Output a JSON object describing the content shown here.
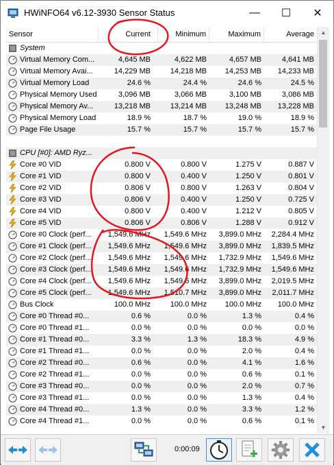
{
  "window": {
    "title": "HWiNFO64 v6.12-3930 Sensor Status"
  },
  "title_buttons": {
    "minimize": "—",
    "maximize": "☐",
    "close": "✕"
  },
  "columns": {
    "sensor": "Sensor",
    "current": "Current",
    "minimum": "Minimum",
    "maximum": "Maximum",
    "average": "Average"
  },
  "scroll": {
    "up": "▲",
    "down": "▼"
  },
  "rows": [
    {
      "type": "group",
      "icon": "system-icon",
      "label": "System"
    },
    {
      "type": "sensor",
      "icon": "gauge-icon",
      "label": "Virtual Memory Com...",
      "current": "4,645 MB",
      "min": "4,622 MB",
      "max": "4,657 MB",
      "avg": "4,641 MB"
    },
    {
      "type": "sensor",
      "icon": "gauge-icon",
      "label": "Virtual Memory Avai...",
      "current": "14,229 MB",
      "min": "14,218 MB",
      "max": "14,253 MB",
      "avg": "14,233 MB"
    },
    {
      "type": "sensor",
      "icon": "gauge-icon",
      "label": "Virtual Memory Load",
      "current": "24.6 %",
      "min": "24.4 %",
      "max": "24.6 %",
      "avg": "24.5 %"
    },
    {
      "type": "sensor",
      "icon": "gauge-icon",
      "label": "Physical Memory Used",
      "current": "3,096 MB",
      "min": "3,066 MB",
      "max": "3,100 MB",
      "avg": "3,086 MB"
    },
    {
      "type": "sensor",
      "icon": "gauge-icon",
      "label": "Physical Memory Av...",
      "current": "13,218 MB",
      "min": "13,214 MB",
      "max": "13,248 MB",
      "avg": "13,228 MB"
    },
    {
      "type": "sensor",
      "icon": "gauge-icon",
      "label": "Physical Memory Load",
      "current": "18.9 %",
      "min": "18.7 %",
      "max": "19.0 %",
      "avg": "18.9 %"
    },
    {
      "type": "sensor",
      "icon": "gauge-icon",
      "label": "Page File Usage",
      "current": "15.7 %",
      "min": "15.7 %",
      "max": "15.7 %",
      "avg": "15.7 %"
    },
    {
      "type": "blank"
    },
    {
      "type": "group",
      "icon": "cpu-icon",
      "label": "CPU [#0]: AMD Ryz..."
    },
    {
      "type": "sensor",
      "icon": "voltage-icon",
      "label": "Core #0 VID",
      "current": "0.800 V",
      "min": "0.800 V",
      "max": "1.275 V",
      "avg": "0.887 V"
    },
    {
      "type": "sensor",
      "icon": "voltage-icon",
      "label": "Core #1 VID",
      "current": "0.800 V",
      "min": "0.400 V",
      "max": "1.250 V",
      "avg": "0.801 V"
    },
    {
      "type": "sensor",
      "icon": "voltage-icon",
      "label": "Core #2 VID",
      "current": "0.806 V",
      "min": "0.800 V",
      "max": "1.263 V",
      "avg": "0.804 V"
    },
    {
      "type": "sensor",
      "icon": "voltage-icon",
      "label": "Core #3 VID",
      "current": "0.806 V",
      "min": "0.400 V",
      "max": "1.250 V",
      "avg": "0.725 V"
    },
    {
      "type": "sensor",
      "icon": "voltage-icon",
      "label": "Core #4 VID",
      "current": "0.800 V",
      "min": "0.400 V",
      "max": "1.212 V",
      "avg": "0.805 V"
    },
    {
      "type": "sensor",
      "icon": "voltage-icon",
      "label": "Core #5 VID",
      "current": "0.806 V",
      "min": "0.806 V",
      "max": "1.288 V",
      "avg": "0.912 V"
    },
    {
      "type": "sensor",
      "icon": "gauge-icon",
      "label": "Core #0 Clock (perf...",
      "current": "1,549.6 MHz",
      "min": "1,549.6 MHz",
      "max": "3,899.0 MHz",
      "avg": "2,284.4 MHz"
    },
    {
      "type": "sensor",
      "icon": "gauge-icon",
      "label": "Core #1 Clock (perf...",
      "current": "1,549.6 MHz",
      "min": "1,549.6 MHz",
      "max": "3,899.0 MHz",
      "avg": "1,839.5 MHz"
    },
    {
      "type": "sensor",
      "icon": "gauge-icon",
      "label": "Core #2 Clock (perf...",
      "current": "1,549.6 MHz",
      "min": "1,549.6 MHz",
      "max": "1,732.9 MHz",
      "avg": "1,549.6 MHz"
    },
    {
      "type": "sensor",
      "icon": "gauge-icon",
      "label": "Core #3 Clock (perf...",
      "current": "1,549.6 MHz",
      "min": "1,549.6 MHz",
      "max": "1,732.9 MHz",
      "avg": "1,549.6 MHz"
    },
    {
      "type": "sensor",
      "icon": "gauge-icon",
      "label": "Core #4 Clock (perf...",
      "current": "1,549.6 MHz",
      "min": "1,549.6 MHz",
      "max": "3,899.0 MHz",
      "avg": "2,019.5 MHz"
    },
    {
      "type": "sensor",
      "icon": "gauge-icon",
      "label": "Core #5 Clock (perf...",
      "current": "1,549.6 MHz",
      "min": "1,510.7 MHz",
      "max": "3,899.0 MHz",
      "avg": "2,011.7 MHz"
    },
    {
      "type": "sensor",
      "icon": "gauge-icon",
      "label": "Bus Clock",
      "current": "100.0 MHz",
      "min": "100.0 MHz",
      "max": "100.0 MHz",
      "avg": "100.0 MHz"
    },
    {
      "type": "sensor",
      "icon": "gauge-icon",
      "label": "Core #0 Thread #0...",
      "current": "0.6 %",
      "min": "0.0 %",
      "max": "1.3 %",
      "avg": "0.4 %"
    },
    {
      "type": "sensor",
      "icon": "gauge-icon",
      "label": "Core #0 Thread #1...",
      "current": "0.0 %",
      "min": "0.0 %",
      "max": "0.0 %",
      "avg": "0.0 %"
    },
    {
      "type": "sensor",
      "icon": "gauge-icon",
      "label": "Core #1 Thread #0...",
      "current": "3.3 %",
      "min": "1.3 %",
      "max": "18.3 %",
      "avg": "4.9 %"
    },
    {
      "type": "sensor",
      "icon": "gauge-icon",
      "label": "Core #1 Thread #1...",
      "current": "0.0 %",
      "min": "0.0 %",
      "max": "2.0 %",
      "avg": "0.4 %"
    },
    {
      "type": "sensor",
      "icon": "gauge-icon",
      "label": "Core #2 Thread #0...",
      "current": "0.6 %",
      "min": "0.0 %",
      "max": "4.1 %",
      "avg": "1.6 %"
    },
    {
      "type": "sensor",
      "icon": "gauge-icon",
      "label": "Core #2 Thread #1...",
      "current": "0.0 %",
      "min": "0.0 %",
      "max": "0.6 %",
      "avg": "0.1 %"
    },
    {
      "type": "sensor",
      "icon": "gauge-icon",
      "label": "Core #3 Thread #0...",
      "current": "0.0 %",
      "min": "0.0 %",
      "max": "2.0 %",
      "avg": "0.7 %"
    },
    {
      "type": "sensor",
      "icon": "gauge-icon",
      "label": "Core #3 Thread #1...",
      "current": "0.0 %",
      "min": "0.0 %",
      "max": "1.3 %",
      "avg": "0.4 %"
    },
    {
      "type": "sensor",
      "icon": "gauge-icon",
      "label": "Core #4 Thread #0...",
      "current": "1.3 %",
      "min": "0.0 %",
      "max": "3.3 %",
      "avg": "1.2 %"
    },
    {
      "type": "sensor",
      "icon": "gauge-icon",
      "label": "Core #4 Thread #1...",
      "current": "0.0 %",
      "min": "0.0 %",
      "max": "0.6 %",
      "avg": "0.1 %"
    }
  ],
  "footer": {
    "elapsed": "0:00:09"
  },
  "colors": {
    "annotation": "#e8141c",
    "accent": "#1e8fe0",
    "row_alt": "#efefef"
  }
}
